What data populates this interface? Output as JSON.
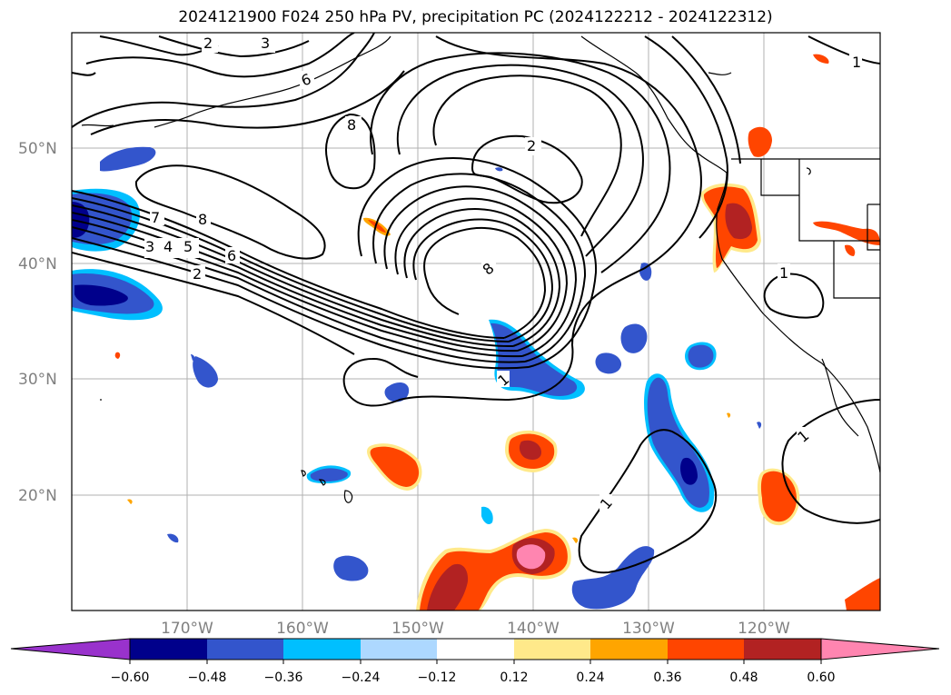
{
  "title": "2024121900 F024 250 hPa PV, precipitation PC (2024122212 - 2024122312)",
  "lat_labels": [
    "50°N",
    "40°N",
    "30°N",
    "20°N"
  ],
  "lon_labels": [
    "170°W",
    "160°W",
    "150°W",
    "140°W",
    "130°W",
    "120°W"
  ],
  "colorbar": {
    "ticks": [
      "−0.60",
      "−0.48",
      "−0.36",
      "−0.24",
      "−0.12",
      "0.12",
      "0.24",
      "0.36",
      "0.48",
      "0.60"
    ],
    "colors": [
      "#9932cc",
      "#00008b",
      "#3355cc",
      "#00bfff",
      "#add8ff",
      "#ffffff",
      "#ffe98a",
      "#ffa500",
      "#ff4500",
      "#b22222",
      "#ff85b0"
    ]
  },
  "contour_labels": [
    "2",
    "3",
    "6",
    "8",
    "2",
    "7",
    "8",
    "3",
    "4",
    "5",
    "6",
    "2",
    "8",
    "1",
    "1",
    "1",
    "1",
    "1"
  ],
  "colors": {
    "purple": "#9932cc",
    "navy": "#00008b",
    "blue": "#3355cc",
    "cyan": "#00bfff",
    "lightblue": "#add8ff",
    "yellow": "#ffe98a",
    "orange": "#ffa500",
    "redorange": "#ff4500",
    "red": "#b22222",
    "pink": "#ff85b0"
  }
}
